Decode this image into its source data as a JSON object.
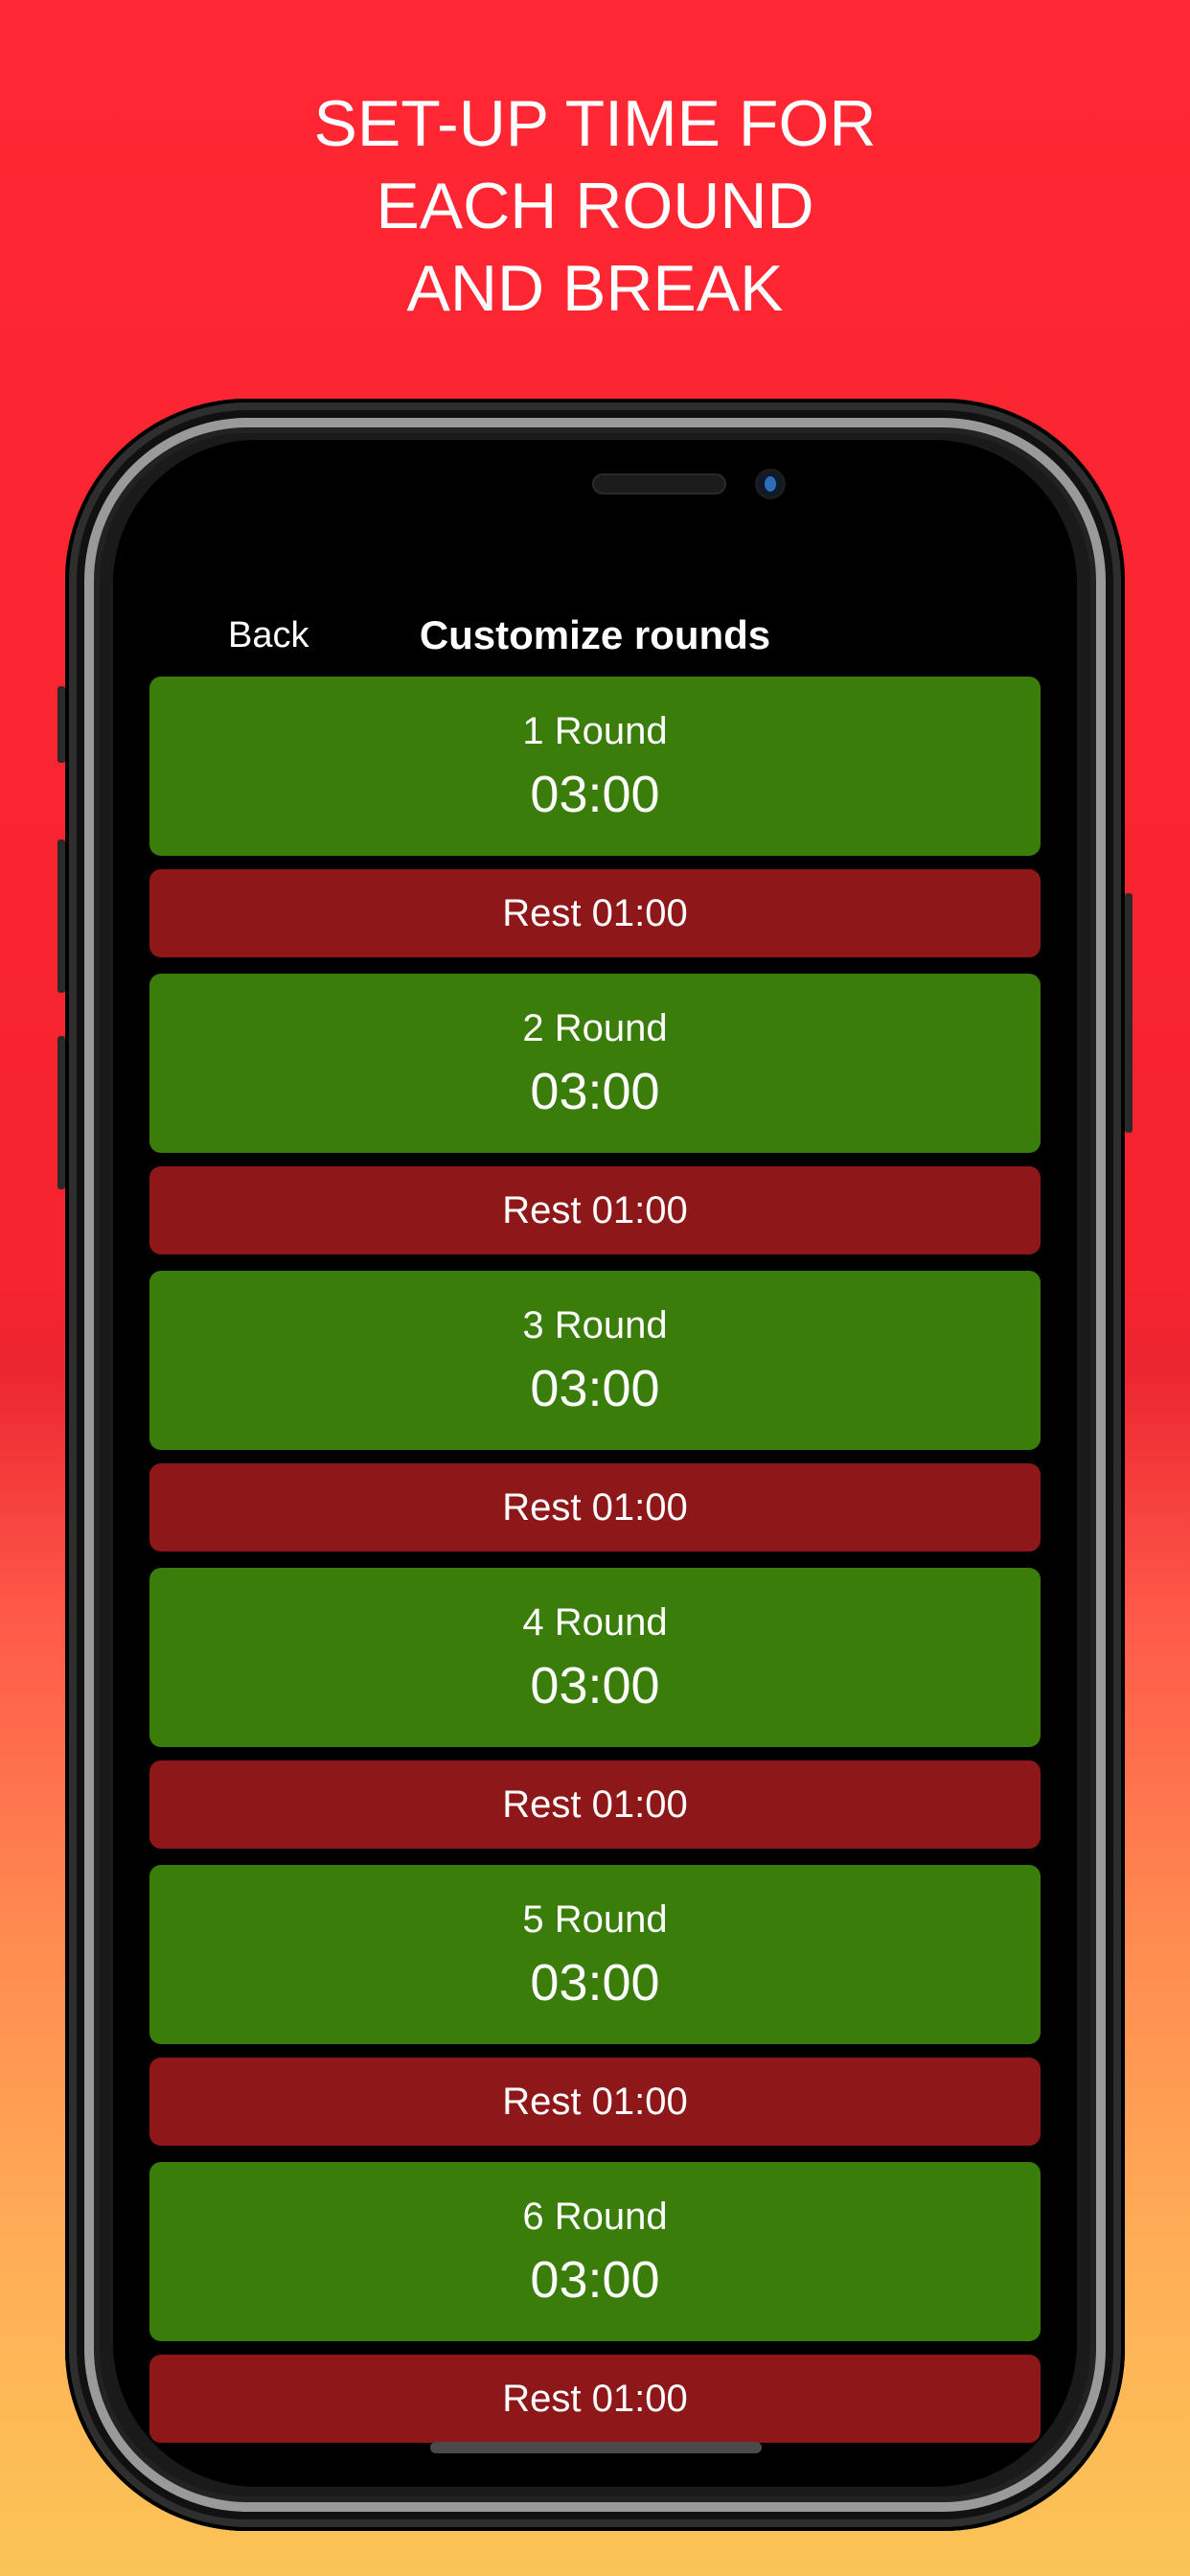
{
  "headline": [
    "SET-UP TIME FOR",
    "EACH ROUND",
    "AND BREAK"
  ],
  "nav": {
    "back_label": "Back",
    "title": "Customize rounds"
  },
  "colors": {
    "round": "#3A7D0A",
    "rest": "#8E1819"
  },
  "rounds": [
    {
      "name": "1 Round",
      "time": "03:00",
      "rest": "Rest 01:00"
    },
    {
      "name": "2 Round",
      "time": "03:00",
      "rest": "Rest 01:00"
    },
    {
      "name": "3 Round",
      "time": "03:00",
      "rest": "Rest 01:00"
    },
    {
      "name": "4 Round",
      "time": "03:00",
      "rest": "Rest 01:00"
    },
    {
      "name": "5 Round",
      "time": "03:00",
      "rest": "Rest 01:00"
    },
    {
      "name": "6 Round",
      "time": "03:00",
      "rest": "Rest 01:00"
    }
  ]
}
